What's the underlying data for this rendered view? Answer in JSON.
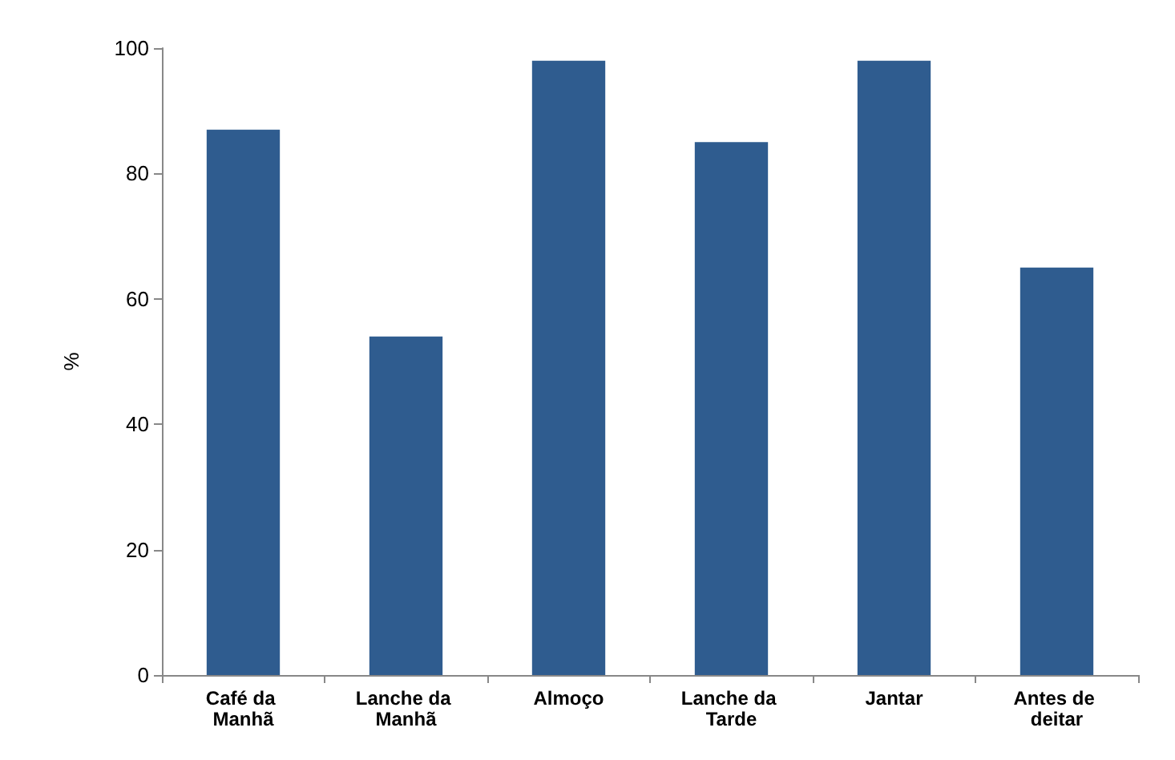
{
  "chart_data": {
    "type": "bar",
    "ylabel": "%",
    "categories": [
      "Café da Manhã",
      "Lanche da Manhã",
      "Almoço",
      "Lanche da Tarde",
      "Jantar",
      "Antes de deitar"
    ],
    "values": [
      87,
      54,
      98,
      85,
      98,
      65
    ],
    "color": "#2f5c8f",
    "ylim": [
      0,
      100
    ],
    "yticks": [
      0,
      20,
      40,
      60,
      80,
      100
    ],
    "grid": false
  }
}
